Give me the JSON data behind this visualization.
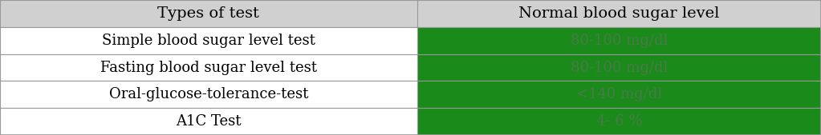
{
  "col1_header": "Types of test",
  "col2_header": "Normal blood sugar level",
  "rows": [
    [
      "Simple blood sugar level test",
      "80-100 mg/dl"
    ],
    [
      "Fasting blood sugar level test",
      "80-100 mg/dl"
    ],
    [
      "Oral-glucose-tolerance-test",
      "<140 mg/dl"
    ],
    [
      "A1C Test",
      "4- 6 %"
    ]
  ],
  "header_bg": "#d0d0d0",
  "row_bg_col1": "#ffffff",
  "row_bg_col2": "#1a8a1a",
  "header_text_color": "#000000",
  "col1_text_color": "#000000",
  "col2_text_color": "#4a7a4a",
  "border_color": "#999999",
  "font_size_header": 14,
  "font_size_row": 13,
  "col_split": 0.508,
  "fig_width": 10.23,
  "fig_height": 1.69,
  "dpi": 100
}
